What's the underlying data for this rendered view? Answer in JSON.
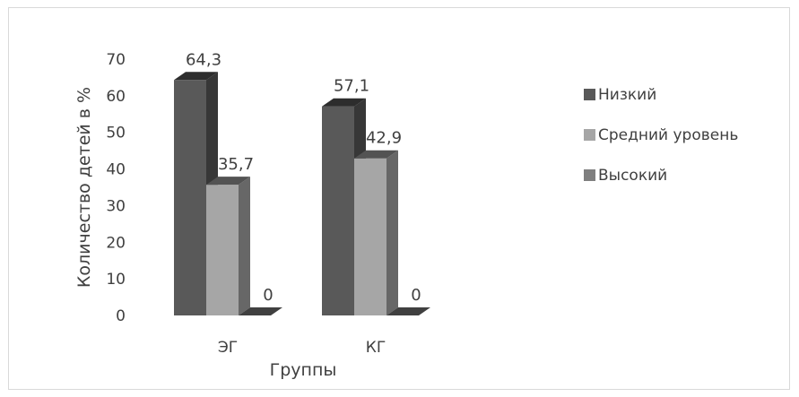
{
  "chart_data": {
    "type": "bar",
    "categories": [
      "ЭГ",
      "КГ"
    ],
    "series": [
      {
        "name": "Низкий",
        "values": [
          64.3,
          57.1
        ],
        "labels": [
          "64,3",
          "57,1"
        ],
        "color": "#595959"
      },
      {
        "name": "Средний уровень",
        "values": [
          35.7,
          42.9
        ],
        "labels": [
          "35,7",
          "42,9"
        ],
        "color": "#a6a6a6"
      },
      {
        "name": "Высокий",
        "values": [
          0,
          0
        ],
        "labels": [
          "0",
          "0"
        ],
        "color": "#7f7f7f"
      }
    ],
    "title": "",
    "xlabel": "Группы",
    "ylabel": "Количество детей в %",
    "ylim": [
      0,
      70
    ],
    "yticks": [
      "0",
      "10",
      "20",
      "30",
      "40",
      "50",
      "60",
      "70"
    ],
    "grid": false,
    "legend_position": "right",
    "style": "3d-bars"
  }
}
